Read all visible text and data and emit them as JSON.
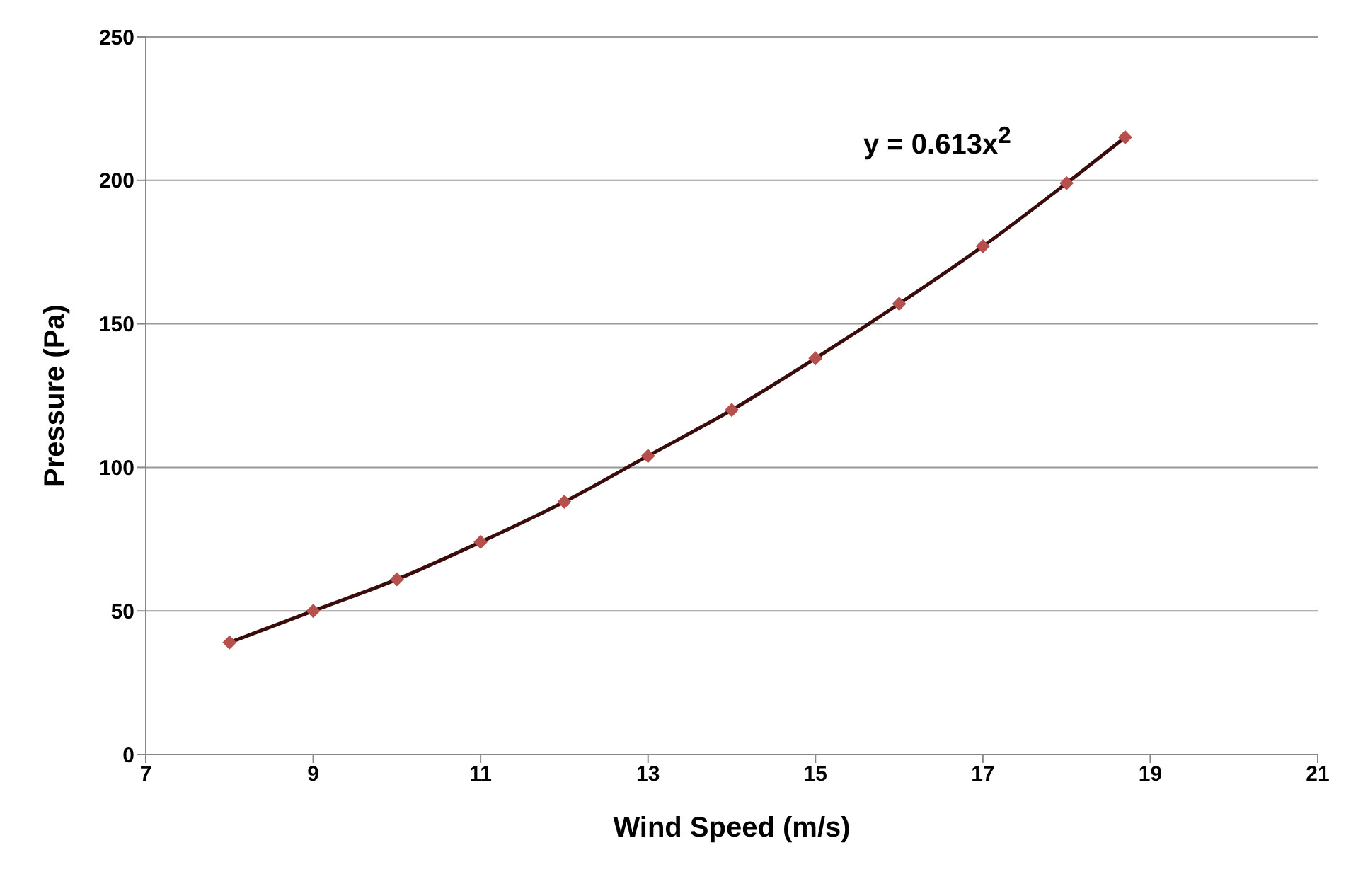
{
  "chart_data": {
    "type": "scatter",
    "xlabel": "Wind Speed (m/s)",
    "ylabel": "Pressure (Pa)",
    "x": [
      8,
      9,
      10,
      11,
      12,
      13,
      14,
      15,
      16,
      17,
      18,
      18.7
    ],
    "series": [
      {
        "color": "#b5504c",
        "marker": "diamond",
        "values": [
          39,
          50,
          61,
          74,
          88,
          104,
          120,
          138,
          157,
          177,
          199,
          215
        ]
      },
      {
        "type": "line",
        "color": "#3a0c0c",
        "marker": "none",
        "values": [
          39,
          50,
          61,
          74,
          88,
          104,
          120,
          138,
          157,
          177,
          199,
          215
        ]
      }
    ],
    "xlim": [
      7,
      21
    ],
    "xticks": [
      7,
      9,
      11,
      13,
      15,
      17,
      19,
      21
    ],
    "ylim": [
      0,
      250
    ],
    "yticks": [
      0,
      50,
      100,
      150,
      200,
      250
    ],
    "grid": "y",
    "legend": false,
    "annotations": [
      "y = 0.613x$^{2}$"
    ]
  }
}
